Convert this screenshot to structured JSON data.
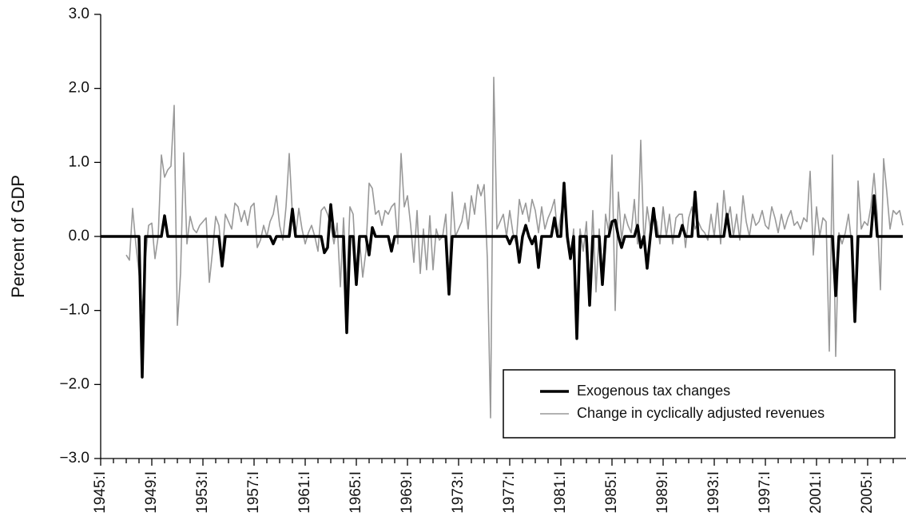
{
  "chart_data": {
    "type": "line",
    "y_label": "Percent of GDP",
    "x": [
      1945,
      1945.25,
      1945.5,
      1945.75,
      1946,
      1946.25,
      1946.5,
      1946.75,
      1947,
      1947.25,
      1947.5,
      1947.75,
      1948,
      1948.25,
      1948.5,
      1948.75,
      1949,
      1949.25,
      1949.5,
      1949.75,
      1950,
      1950.25,
      1950.5,
      1950.75,
      1951,
      1951.25,
      1951.5,
      1951.75,
      1952,
      1952.25,
      1952.5,
      1952.75,
      1953,
      1953.25,
      1953.5,
      1953.75,
      1954,
      1954.25,
      1954.5,
      1954.75,
      1955,
      1955.25,
      1955.5,
      1955.75,
      1956,
      1956.25,
      1956.5,
      1956.75,
      1957,
      1957.25,
      1957.5,
      1957.75,
      1958,
      1958.25,
      1958.5,
      1958.75,
      1959,
      1959.25,
      1959.5,
      1959.75,
      1960,
      1960.25,
      1960.5,
      1960.75,
      1961,
      1961.25,
      1961.5,
      1961.75,
      1962,
      1962.25,
      1962.5,
      1962.75,
      1963,
      1963.25,
      1963.5,
      1963.75,
      1964,
      1964.25,
      1964.5,
      1964.75,
      1965,
      1965.25,
      1965.5,
      1965.75,
      1966,
      1966.25,
      1966.5,
      1966.75,
      1967,
      1967.25,
      1967.5,
      1967.75,
      1968,
      1968.25,
      1968.5,
      1968.75,
      1969,
      1969.25,
      1969.5,
      1969.75,
      1970,
      1970.25,
      1970.5,
      1970.75,
      1971,
      1971.25,
      1971.5,
      1971.75,
      1972,
      1972.25,
      1972.5,
      1972.75,
      1973,
      1973.25,
      1973.5,
      1973.75,
      1974,
      1974.25,
      1974.5,
      1974.75,
      1975,
      1975.25,
      1975.5,
      1975.75,
      1976,
      1976.25,
      1976.5,
      1976.75,
      1977,
      1977.25,
      1977.5,
      1977.75,
      1978,
      1978.25,
      1978.5,
      1978.75,
      1979,
      1979.25,
      1979.5,
      1979.75,
      1980,
      1980.25,
      1980.5,
      1980.75,
      1981,
      1981.25,
      1981.5,
      1981.75,
      1982,
      1982.25,
      1982.5,
      1982.75,
      1983,
      1983.25,
      1983.5,
      1983.75,
      1984,
      1984.25,
      1984.5,
      1984.75,
      1985,
      1985.25,
      1985.5,
      1985.75,
      1986,
      1986.25,
      1986.5,
      1986.75,
      1987,
      1987.25,
      1987.5,
      1987.75,
      1988,
      1988.25,
      1988.5,
      1988.75,
      1989,
      1989.25,
      1989.5,
      1989.75,
      1990,
      1990.25,
      1990.5,
      1990.75,
      1991,
      1991.25,
      1991.5,
      1991.75,
      1992,
      1992.25,
      1992.5,
      1992.75,
      1993,
      1993.25,
      1993.5,
      1993.75,
      1994,
      1994.25,
      1994.5,
      1994.75,
      1995,
      1995.25,
      1995.5,
      1995.75,
      1996,
      1996.25,
      1996.5,
      1996.75,
      1997,
      1997.25,
      1997.5,
      1997.75,
      1998,
      1998.25,
      1998.5,
      1998.75,
      1999,
      1999.25,
      1999.5,
      1999.75,
      2000,
      2000.25,
      2000.5,
      2000.75,
      2001,
      2001.25,
      2001.5,
      2001.75,
      2002,
      2002.25,
      2002.5,
      2002.75,
      2003,
      2003.25,
      2003.5,
      2003.75,
      2004,
      2004.25,
      2004.5,
      2004.75,
      2005,
      2005.25,
      2005.5,
      2005.75,
      2006,
      2006.25,
      2006.5,
      2006.75,
      2007,
      2007.25,
      2007.5,
      2007.75
    ],
    "series": [
      {
        "name": "Exogenous tax changes",
        "color": "#000000",
        "width": 3.5,
        "values": [
          0,
          0,
          0,
          0,
          0,
          0,
          0,
          0,
          0,
          0,
          0,
          0,
          0,
          -1.9,
          0,
          0,
          0,
          0,
          0,
          0,
          0.28,
          0,
          0,
          0,
          0,
          0,
          0,
          0,
          0,
          0,
          0,
          0,
          0,
          0,
          0,
          0,
          0,
          0,
          -0.4,
          0,
          0,
          0,
          0,
          0,
          0,
          0,
          0,
          0,
          0,
          0,
          0,
          0,
          0,
          0,
          -0.1,
          0,
          0,
          0,
          0,
          0,
          0.37,
          0,
          0,
          0,
          0,
          0,
          0,
          0,
          0,
          0,
          -0.22,
          -0.15,
          0.43,
          0,
          0,
          0,
          0,
          -1.3,
          0,
          0,
          -0.65,
          0,
          0,
          0,
          -0.25,
          0.12,
          0,
          0,
          0,
          0,
          0,
          -0.2,
          0,
          0,
          0,
          0,
          0,
          0,
          0,
          0,
          0,
          0,
          0,
          0,
          0,
          0,
          0,
          0,
          0,
          -0.78,
          0,
          0,
          0,
          0,
          0,
          0,
          0,
          0,
          0,
          0,
          0,
          0,
          0,
          0,
          0,
          0,
          0,
          0,
          -0.1,
          0,
          0,
          -0.35,
          0,
          0.15,
          0,
          -0.1,
          0,
          -0.42,
          0,
          0,
          0,
          0,
          0.25,
          0,
          0,
          0.72,
          0,
          -0.3,
          0,
          -1.38,
          0,
          0,
          0,
          -0.93,
          0,
          0,
          0,
          -0.65,
          0,
          0,
          0.2,
          0.22,
          0,
          -0.15,
          0,
          0,
          0,
          0,
          0.15,
          -0.15,
          0,
          -0.43,
          0,
          0.38,
          0,
          0,
          0,
          0,
          0,
          0,
          0,
          0,
          0.15,
          0,
          0,
          0,
          0.6,
          0,
          0,
          0,
          0,
          0,
          0,
          0,
          0,
          0,
          0.3,
          0,
          0,
          0,
          0,
          0,
          0,
          0,
          0,
          0,
          0,
          0,
          0,
          0,
          0,
          0,
          0,
          0,
          0,
          0,
          0,
          0,
          0,
          0,
          0,
          0,
          0,
          0,
          0,
          0,
          0,
          0,
          0,
          0,
          -0.8,
          0,
          0,
          0,
          0,
          0,
          -1.15,
          0,
          0,
          0,
          0,
          0,
          0.55,
          0,
          0,
          0,
          0,
          0,
          0,
          0,
          0,
          0
        ]
      },
      {
        "name": "Change in cyclically adjusted revenues",
        "color": "#999999",
        "width": 1.6,
        "values": [
          null,
          null,
          null,
          null,
          null,
          null,
          null,
          null,
          -0.25,
          -0.32,
          0.38,
          -0.1,
          -0.5,
          -1.0,
          -0.3,
          0.15,
          0.18,
          -0.3,
          0.0,
          1.1,
          0.8,
          0.9,
          0.95,
          1.77,
          -1.2,
          -0.5,
          1.13,
          -0.1,
          0.27,
          0.1,
          0.05,
          0.15,
          0.2,
          0.25,
          -0.62,
          -0.2,
          0.27,
          0.15,
          -0.3,
          0.3,
          0.2,
          0.1,
          0.45,
          0.4,
          0.2,
          0.35,
          0.15,
          0.4,
          0.45,
          -0.15,
          -0.05,
          0.15,
          0.0,
          0.2,
          0.3,
          0.55,
          0.15,
          -0.05,
          0.4,
          1.12,
          0.3,
          0.0,
          0.38,
          0.1,
          -0.1,
          0.05,
          0.15,
          0.0,
          -0.2,
          0.35,
          0.4,
          0.3,
          0.15,
          -0.1,
          0.18,
          -0.68,
          0.25,
          -0.7,
          0.4,
          0.3,
          -0.5,
          -0.05,
          -0.55,
          -0.2,
          0.72,
          0.65,
          0.3,
          0.35,
          0.15,
          0.35,
          0.3,
          0.4,
          0.45,
          -0.1,
          1.12,
          0.4,
          0.55,
          0.15,
          -0.35,
          0.35,
          -0.5,
          0.1,
          -0.45,
          0.28,
          -0.45,
          0.1,
          -0.05,
          0.0,
          0.3,
          -0.6,
          0.6,
          0.0,
          0.1,
          0.2,
          0.45,
          0.1,
          0.55,
          0.3,
          0.7,
          0.55,
          0.7,
          -0.3,
          -2.45,
          2.15,
          0.1,
          0.2,
          0.3,
          0.0,
          0.35,
          0.05,
          -0.1,
          0.5,
          0.3,
          0.45,
          0.2,
          0.5,
          0.35,
          0.05,
          0.4,
          0.1,
          0.25,
          0.35,
          0.5,
          0.0,
          0.3,
          0.45,
          0.15,
          -0.3,
          0.1,
          -1.2,
          0.1,
          -0.2,
          0.2,
          -0.7,
          0.35,
          -0.75,
          0.1,
          -0.6,
          0.3,
          0.05,
          1.1,
          -1.0,
          0.6,
          -0.05,
          0.3,
          0.15,
          0.05,
          0.5,
          -0.1,
          1.3,
          -0.1,
          0.4,
          0.1,
          0.3,
          0.2,
          -0.1,
          0.4,
          0.0,
          0.3,
          -0.1,
          0.25,
          0.3,
          0.3,
          -0.15,
          0.25,
          0.4,
          0.1,
          0.2,
          0.1,
          0.05,
          -0.05,
          0.3,
          0.0,
          0.45,
          -0.1,
          0.62,
          0.2,
          0.4,
          0.0,
          0.3,
          -0.05,
          0.55,
          0.2,
          0.0,
          0.3,
          0.15,
          0.2,
          0.35,
          0.15,
          0.1,
          0.4,
          0.25,
          0.05,
          0.3,
          0.1,
          0.25,
          0.35,
          0.15,
          0.2,
          0.1,
          0.25,
          0.2,
          0.88,
          -0.25,
          0.4,
          0.0,
          0.25,
          0.2,
          -1.55,
          1.1,
          -1.62,
          0.05,
          -0.1,
          0.05,
          0.3,
          -0.1,
          -1.15,
          0.75,
          0.1,
          0.2,
          0.15,
          0.4,
          0.85,
          0.3,
          -0.72,
          1.05,
          0.6,
          0.1,
          0.35,
          0.3,
          0.35,
          0.15
        ]
      }
    ],
    "xlim": [
      1945,
      2008
    ],
    "xticks": [
      {
        "value": 1945,
        "label": "1945:I"
      },
      {
        "value": 1949,
        "label": "1949:I"
      },
      {
        "value": 1953,
        "label": "1953:I"
      },
      {
        "value": 1957,
        "label": "1957:I"
      },
      {
        "value": 1961,
        "label": "1961:I"
      },
      {
        "value": 1965,
        "label": "1965:I"
      },
      {
        "value": 1969,
        "label": "1969:I"
      },
      {
        "value": 1973,
        "label": "1973:I"
      },
      {
        "value": 1977,
        "label": "1977:I"
      },
      {
        "value": 1981,
        "label": "1981:I"
      },
      {
        "value": 1985,
        "label": "1985:I"
      },
      {
        "value": 1989,
        "label": "1989:I"
      },
      {
        "value": 1993,
        "label": "1993:I"
      },
      {
        "value": 1997,
        "label": "1997:I"
      },
      {
        "value": 2001,
        "label": "2001:I"
      },
      {
        "value": 2005,
        "label": "2005:I"
      }
    ],
    "xminorticks": [
      1946,
      1947,
      1948,
      1950,
      1951,
      1952,
      1954,
      1955,
      1956,
      1958,
      1959,
      1960,
      1962,
      1963,
      1964,
      1966,
      1967,
      1968,
      1970,
      1971,
      1972,
      1974,
      1975,
      1976,
      1978,
      1979,
      1980,
      1982,
      1983,
      1984,
      1986,
      1987,
      1988,
      1990,
      1991,
      1992,
      1994,
      1995,
      1996,
      1998,
      1999,
      2000,
      2002,
      2003,
      2004,
      2006,
      2007
    ],
    "ylim": [
      -3,
      3
    ],
    "yticks": [
      {
        "value": -3,
        "label": "−3.0"
      },
      {
        "value": -2,
        "label": "−2.0"
      },
      {
        "value": -1,
        "label": "−1.0"
      },
      {
        "value": 0,
        "label": "0.0"
      },
      {
        "value": 1,
        "label": "1.0"
      },
      {
        "value": 2,
        "label": "2.0"
      },
      {
        "value": 3,
        "label": "3.0"
      }
    ],
    "legend": "lower right"
  }
}
